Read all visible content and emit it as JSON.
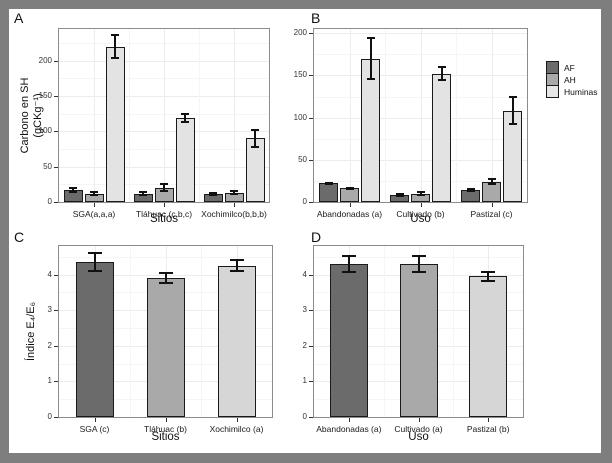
{
  "figure": {
    "background": "#ffffff",
    "frame_color": "#7e7e7e",
    "legend": {
      "position": "right-of-panel-B",
      "items": [
        {
          "label": "AF",
          "color": "#6b6b6b"
        },
        {
          "label": "AH",
          "color": "#a9a9a9"
        },
        {
          "label": "Huminas",
          "color": "#e6e6e6"
        }
      ]
    }
  },
  "chart_data": [
    {
      "panel": "A",
      "type": "bar",
      "title": "",
      "ylabel": "Carbono en SH (gCKg⁻¹)",
      "ylabel_lines": [
        "Carbono en SH",
        "(gCKg⁻¹)"
      ],
      "xlabel": "Sitios",
      "categories": [
        "SGA(a,a,a)",
        "Tláhuac (c,b,c)",
        "Xochimilco(b,b,b)"
      ],
      "series": [
        {
          "name": "AF",
          "color": "#6b6b6b",
          "values": [
            17,
            12,
            11
          ],
          "errors": [
            3,
            2,
            1.5
          ]
        },
        {
          "name": "AH",
          "color": "#a9a9a9",
          "values": [
            12,
            20,
            13
          ],
          "errors": [
            2,
            5,
            2
          ]
        },
        {
          "name": "Huminas",
          "color": "#e3e3e3",
          "values": [
            220,
            119,
            90
          ],
          "errors": [
            16,
            6,
            12
          ]
        }
      ],
      "yticks": [
        0,
        50,
        100,
        150,
        200
      ],
      "ylim": [
        0,
        245
      ],
      "grid": true,
      "legend_position": "none"
    },
    {
      "panel": "B",
      "type": "bar",
      "title": "",
      "ylabel": "",
      "xlabel": "Uso",
      "categories": [
        "Abandonadas (a)",
        "Cultivado (b)",
        "Pastizal (c)"
      ],
      "series": [
        {
          "name": "AF",
          "color": "#6b6b6b",
          "values": [
            22,
            8,
            14
          ],
          "errors": [
            1,
            1,
            1
          ]
        },
        {
          "name": "AH",
          "color": "#a9a9a9",
          "values": [
            16,
            10,
            24
          ],
          "errors": [
            1,
            1.5,
            3
          ]
        },
        {
          "name": "Huminas",
          "color": "#e3e3e3",
          "values": [
            170,
            152,
            108
          ],
          "errors": [
            24,
            8,
            16
          ]
        }
      ],
      "yticks": [
        0,
        50,
        100,
        150,
        200
      ],
      "ylim": [
        0,
        205
      ],
      "grid": true,
      "legend_position": "right"
    },
    {
      "panel": "C",
      "type": "bar",
      "title": "",
      "ylabel": "Índice E₄/E₆",
      "ylabel_lines": [
        "Índice E₄/E₆"
      ],
      "xlabel": "Sitios",
      "categories": [
        "SGA (c)",
        "Tláhuac (b)",
        "Xochimilco (a)"
      ],
      "values": [
        4.35,
        3.9,
        4.25
      ],
      "errors": [
        0.24,
        0.15,
        0.15
      ],
      "bar_colors": [
        "#6b6b6b",
        "#a9a9a9",
        "#d6d6d6"
      ],
      "yticks": [
        0,
        1,
        2,
        3,
        4
      ],
      "ylim": [
        0,
        4.8
      ],
      "grid": true,
      "legend_position": "none"
    },
    {
      "panel": "D",
      "type": "bar",
      "title": "",
      "ylabel": "",
      "xlabel": "Uso",
      "categories": [
        "Abandonadas (a)",
        "Cultivado (a)",
        "Pastizal (b)"
      ],
      "values": [
        4.3,
        4.3,
        3.95
      ],
      "errors": [
        0.22,
        0.23,
        0.13
      ],
      "bar_colors": [
        "#6b6b6b",
        "#a9a9a9",
        "#d6d6d6"
      ],
      "yticks": [
        0,
        1,
        2,
        3,
        4
      ],
      "ylim": [
        0,
        4.8
      ],
      "grid": true,
      "legend_position": "none"
    }
  ]
}
